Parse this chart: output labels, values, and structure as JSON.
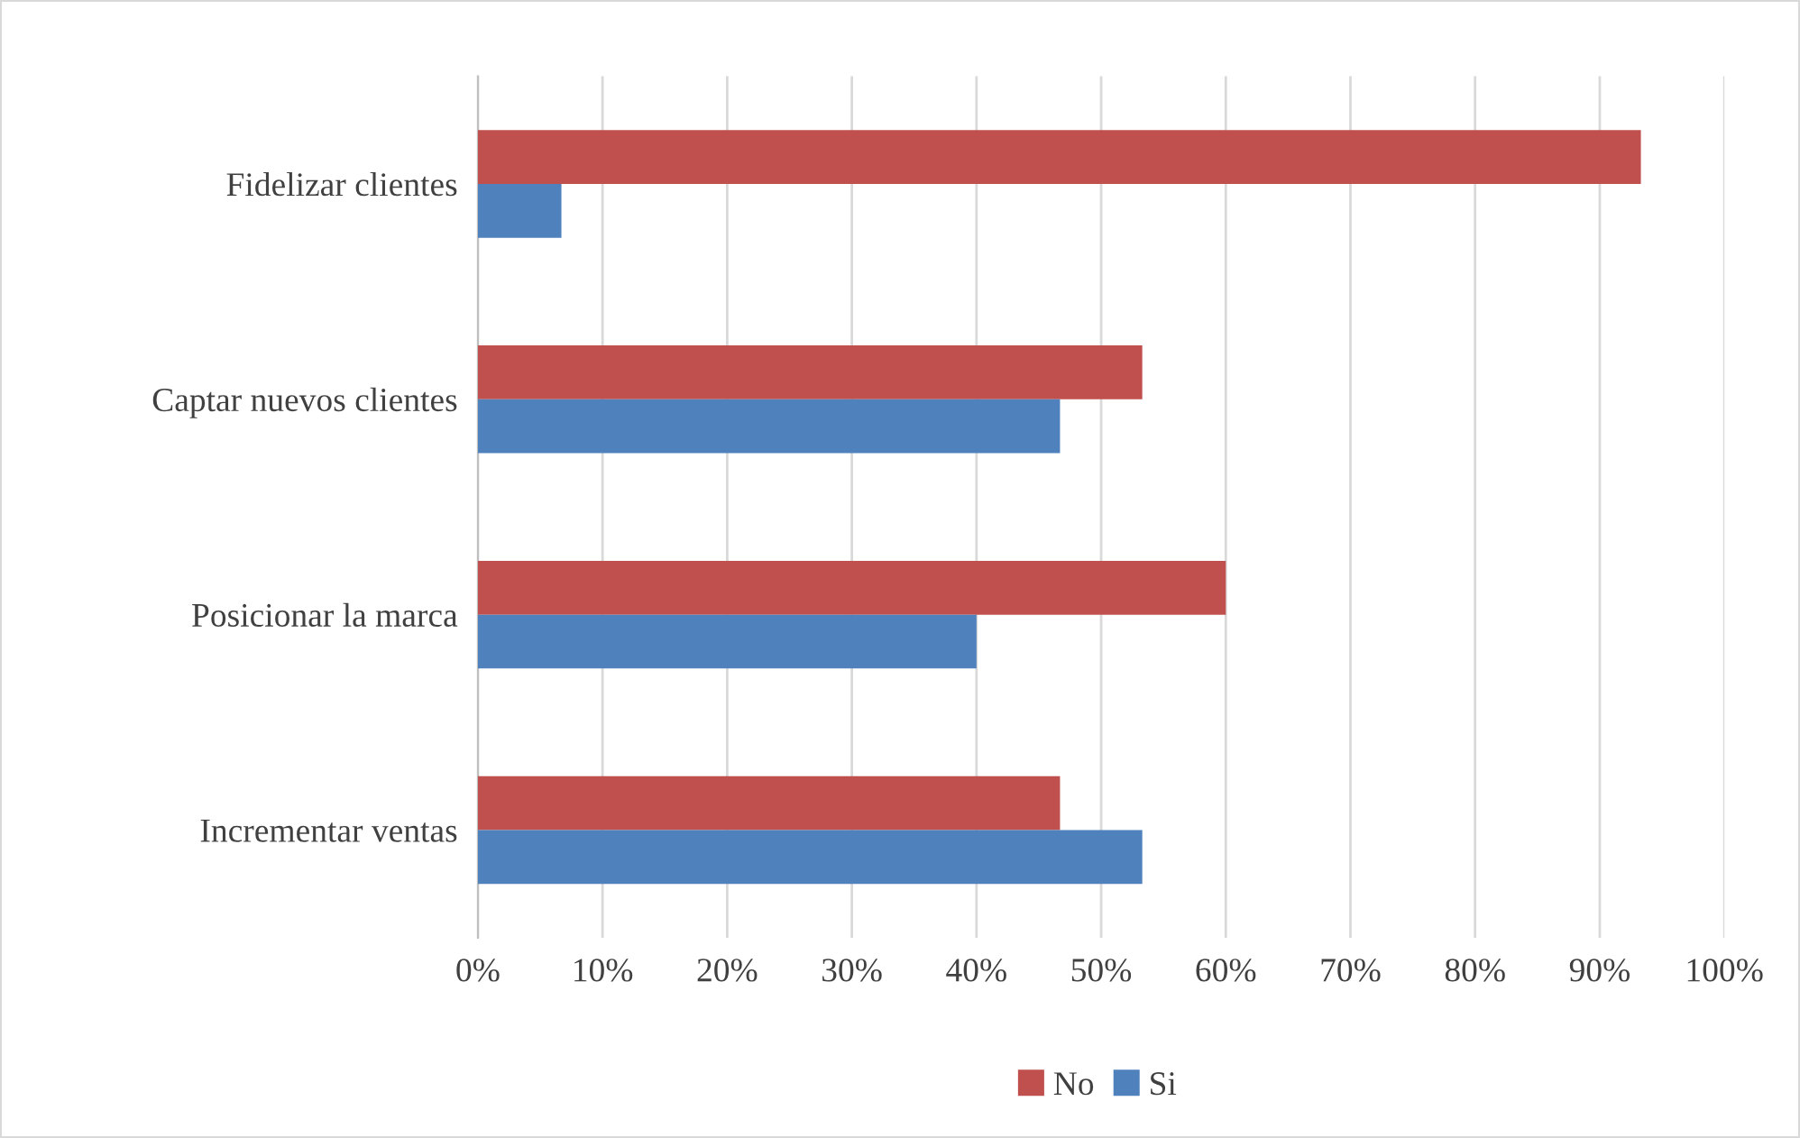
{
  "chart_data": {
    "type": "bar",
    "orientation": "horizontal",
    "categories": [
      "Fidelizar clientes",
      "Captar nuevos clientes",
      "Posicionar la marca",
      "Incrementar ventas"
    ],
    "series": [
      {
        "name": "No",
        "color": "#c0504d",
        "values": [
          93.3,
          53.3,
          60,
          46.7
        ]
      },
      {
        "name": "Si",
        "color": "#4f81bd",
        "values": [
          6.7,
          46.7,
          40,
          53.3
        ]
      }
    ],
    "xlim": [
      0,
      100
    ],
    "xticks": [
      {
        "value": 0,
        "label": "0%"
      },
      {
        "value": 10,
        "label": "10%"
      },
      {
        "value": 20,
        "label": "20%"
      },
      {
        "value": 30,
        "label": "30%"
      },
      {
        "value": 40,
        "label": "40%"
      },
      {
        "value": 50,
        "label": "50%"
      },
      {
        "value": 60,
        "label": "60%"
      },
      {
        "value": 70,
        "label": "70%"
      },
      {
        "value": 80,
        "label": "80%"
      },
      {
        "value": 90,
        "label": "90%"
      },
      {
        "value": 100,
        "label": "100%"
      }
    ],
    "grid": "x",
    "legend": "bottom"
  }
}
